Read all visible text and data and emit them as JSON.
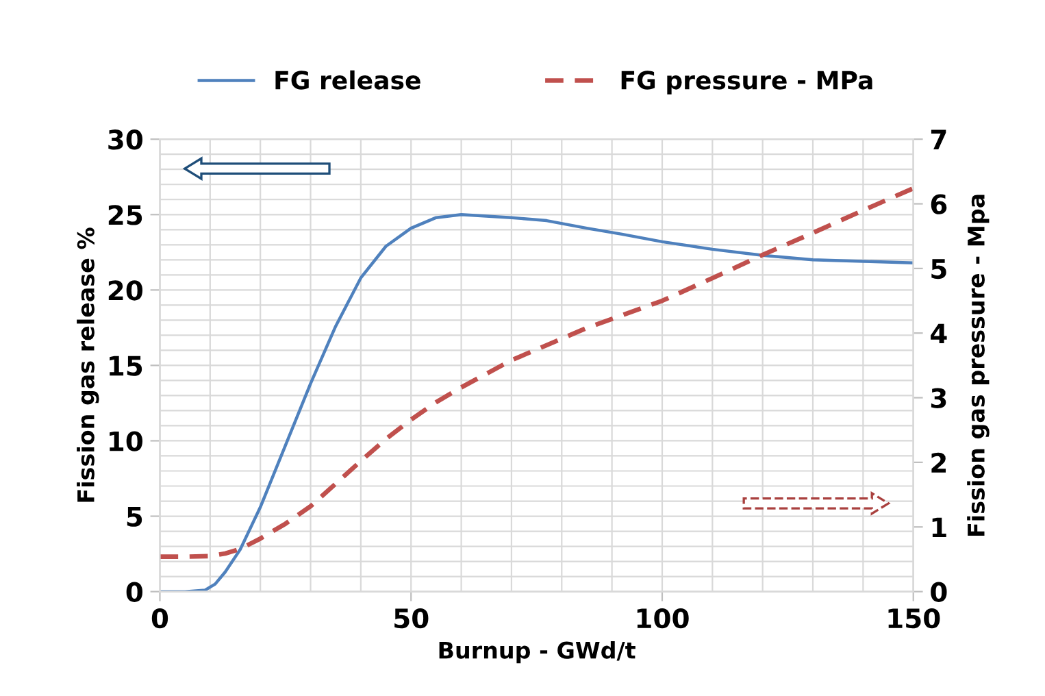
{
  "chart_data": {
    "type": "line",
    "xlabel": "Burnup - GWd/t",
    "ylabel": "Fission gas release %",
    "y2label": "Fission gas pressure - Mpa",
    "xlim": [
      0,
      150
    ],
    "xticks": [
      0,
      50,
      100,
      150
    ],
    "ylim": [
      0,
      30
    ],
    "yticks": [
      0,
      5,
      10,
      15,
      20,
      25,
      30
    ],
    "y2lim": [
      0,
      7
    ],
    "y2ticks": [
      0,
      1,
      2,
      3,
      4,
      5,
      6,
      7
    ],
    "grid": true,
    "legend": "top",
    "series": [
      {
        "name": "FG release",
        "color": "#4f81bd",
        "line_style": "solid",
        "x": [
          0,
          5,
          9,
          11,
          13,
          16,
          20,
          25,
          30,
          35,
          40,
          45,
          50,
          55,
          60,
          65,
          70,
          77,
          85,
          92,
          100,
          110,
          120,
          130,
          140,
          150
        ],
        "values": [
          0,
          0,
          0.1,
          0.5,
          1.3,
          2.8,
          5.6,
          9.7,
          13.8,
          17.6,
          20.8,
          22.9,
          24.1,
          24.8,
          25.0,
          24.9,
          24.8,
          24.6,
          24.1,
          23.7,
          23.2,
          22.7,
          22.3,
          22.0,
          21.9,
          21.8
        ]
      },
      {
        "name": "FG pressure - MPa",
        "color": "#c0504d",
        "line_style": "dashed",
        "axis": "y2",
        "x": [
          0,
          5,
          10,
          13,
          16,
          20,
          25,
          30,
          35,
          40,
          45,
          50,
          55,
          60,
          70,
          85,
          100,
          110,
          120,
          130,
          140,
          150
        ],
        "values": [
          0.54,
          0.54,
          0.55,
          0.59,
          0.66,
          0.82,
          1.05,
          1.32,
          1.67,
          2.02,
          2.36,
          2.66,
          2.93,
          3.16,
          3.58,
          4.08,
          4.5,
          4.85,
          5.21,
          5.55,
          5.9,
          6.24
        ]
      }
    ]
  }
}
